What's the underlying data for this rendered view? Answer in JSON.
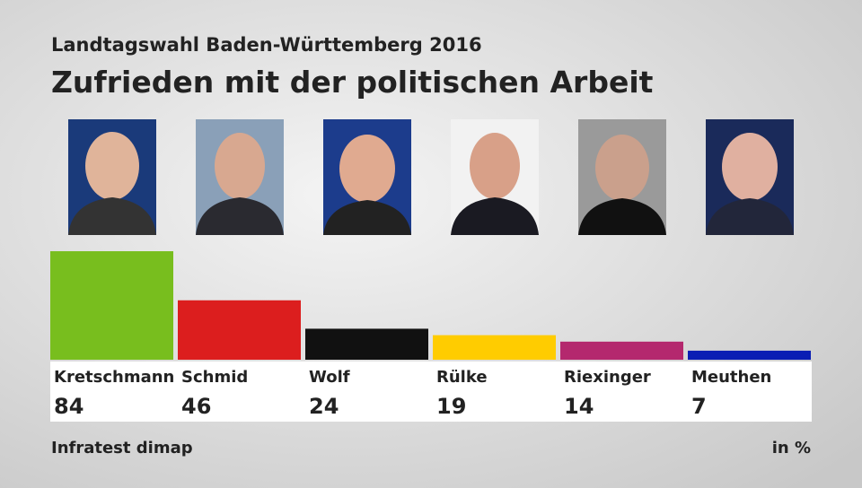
{
  "chart_data": {
    "type": "bar",
    "subtitle": "Landtagswahl Baden-Württemberg 2016",
    "title": "Zufrieden mit der politischen Arbeit",
    "categories": [
      "Kretschmann",
      "Schmid",
      "Wolf",
      "Rülke",
      "Riexinger",
      "Meuthen"
    ],
    "values": [
      84,
      46,
      24,
      19,
      14,
      7
    ],
    "colors": [
      "#78be1e",
      "#dc1e1e",
      "#111111",
      "#ffcc00",
      "#b4286e",
      "#0a1eb4"
    ],
    "source": "Infratest dimap",
    "unit": "in %"
  }
}
